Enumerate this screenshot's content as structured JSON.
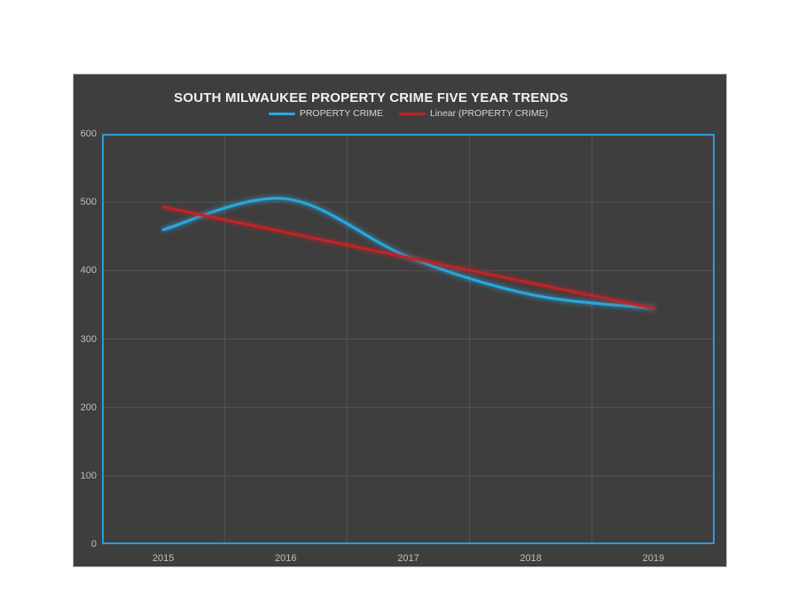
{
  "chart": {
    "background": "#3e3e3e",
    "page_background": "#ffffff",
    "plot_border_color": "#2e9bd8",
    "gridline_color": "#555555",
    "tick_label_color": "#bfbfbf",
    "title_color": "#f2f2f2",
    "legend_text_color": "#d6d6d6"
  },
  "chart_data": {
    "type": "line",
    "title": "SOUTH MILWAUKEE PROPERTY CRIME FIVE YEAR TRENDS",
    "categories": [
      "2015",
      "2016",
      "2017",
      "2018",
      "2019"
    ],
    "series": [
      {
        "name": "PROPERTY CRIME",
        "color": "#29a8e0",
        "values": [
          460,
          505,
          420,
          365,
          345
        ],
        "smooth": true,
        "glow": true
      },
      {
        "name": "Linear (PROPERTY CRIME)",
        "color": "#bf2428",
        "values": [
          493,
          456,
          419,
          382,
          345
        ],
        "smooth": false,
        "glow": true
      }
    ],
    "xlabel": "",
    "ylabel": "",
    "ylim": [
      0,
      600
    ],
    "yticks": [
      0,
      100,
      200,
      300,
      400,
      500,
      600
    ],
    "grid": true,
    "legend_position": "top"
  }
}
